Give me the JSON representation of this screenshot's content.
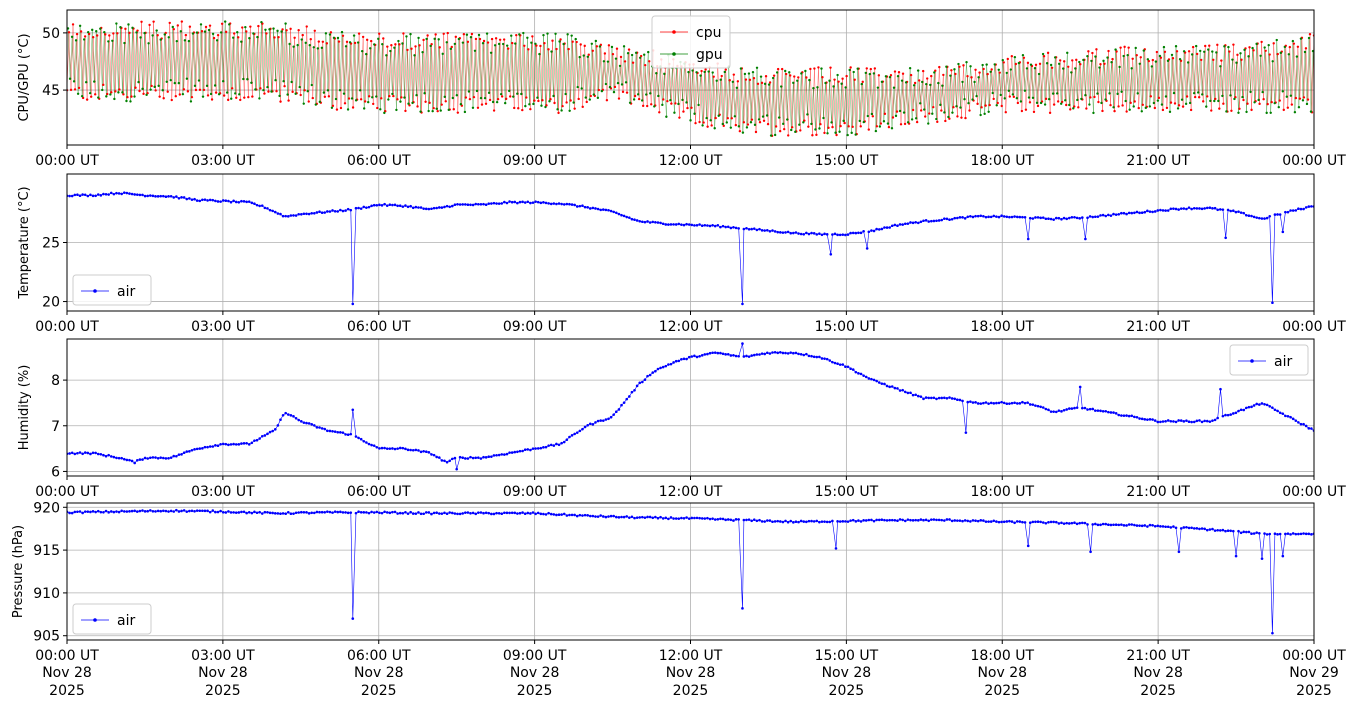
{
  "x_tick_labels": [
    "00:00 UT",
    "03:00 UT",
    "06:00 UT",
    "09:00 UT",
    "12:00 UT",
    "15:00 UT",
    "18:00 UT",
    "21:00 UT",
    "00:00 UT"
  ],
  "x_date_lines": [
    "Nov 28",
    "Nov 28",
    "Nov 28",
    "Nov 28",
    "Nov 28",
    "Nov 28",
    "Nov 28",
    "Nov 28",
    "Nov 29"
  ],
  "x_year_lines": [
    "2025",
    "2025",
    "2025",
    "2025",
    "2025",
    "2025",
    "2025",
    "2025",
    "2025"
  ],
  "colors": {
    "cpu": "#ff0000",
    "gpu": "#008000",
    "air": "#0000ff",
    "grid": "#b0b0b0"
  },
  "chart_data": [
    {
      "type": "line",
      "ylabel": "CPU/GPU (°C)",
      "xlim_hours": [
        0,
        24
      ],
      "ylim": [
        40.2,
        52.0
      ],
      "yticks": [
        45,
        50
      ],
      "grid": true,
      "legend_position": "top-center",
      "series": [
        {
          "name": "cpu",
          "color": "#ff0000",
          "min": 41,
          "max": 51.5,
          "band_hours": [
            0,
            4,
            5.5,
            8,
            9.5,
            10.5,
            12,
            13,
            15,
            16.5,
            18,
            21,
            22.5,
            24
          ],
          "band_low": [
            44,
            44,
            43,
            43,
            43,
            44,
            42,
            41,
            41,
            42,
            43,
            43,
            43,
            43
          ],
          "band_high": [
            51,
            51,
            50,
            50,
            50,
            49,
            48,
            47,
            47,
            47,
            48,
            49,
            49,
            50
          ]
        },
        {
          "name": "gpu",
          "color": "#008000",
          "min": 41,
          "max": 51.5,
          "band_hours": [
            0,
            4,
            5.5,
            8,
            9.5,
            10.5,
            12,
            13,
            15,
            16.5,
            18,
            21,
            22.5,
            24
          ],
          "band_low": [
            44,
            44,
            43,
            43,
            43,
            44,
            42,
            41,
            41,
            42,
            43,
            43,
            43,
            43
          ],
          "band_high": [
            51,
            51,
            50,
            50,
            50,
            49,
            48,
            47,
            47,
            47,
            48,
            49,
            49,
            50
          ]
        }
      ]
    },
    {
      "type": "line",
      "ylabel": "Temperature (°C)",
      "xlim_hours": [
        0,
        24
      ],
      "ylim": [
        19.2,
        30.8
      ],
      "yticks": [
        20,
        25
      ],
      "grid": true,
      "legend_position": "bottom-left",
      "series": [
        {
          "name": "air",
          "color": "#0000ff",
          "x_hours": [
            0,
            0.5,
            1,
            1.5,
            2,
            2.5,
            3,
            3.5,
            3.8,
            4.2,
            4.5,
            5,
            5.5,
            6,
            6.5,
            7,
            7.5,
            8,
            8.5,
            9,
            9.5,
            10,
            10.5,
            11,
            11.5,
            12,
            12.5,
            13,
            13.5,
            14,
            14.5,
            15,
            15.5,
            16,
            16.5,
            17,
            17.5,
            18,
            18.5,
            19,
            19.5,
            20,
            20.5,
            21,
            21.5,
            22,
            22.5,
            23,
            23.5,
            24
          ],
          "y": [
            29.0,
            29.0,
            29.2,
            29.0,
            28.9,
            28.6,
            28.5,
            28.4,
            28.0,
            27.2,
            27.4,
            27.6,
            27.8,
            28.2,
            28.1,
            27.8,
            28.2,
            28.2,
            28.4,
            28.4,
            28.3,
            28.0,
            27.6,
            26.8,
            26.6,
            26.5,
            26.4,
            26.2,
            26.0,
            25.8,
            25.7,
            25.7,
            26.0,
            26.5,
            26.8,
            27.0,
            27.2,
            27.2,
            27.1,
            27.0,
            27.1,
            27.3,
            27.5,
            27.7,
            27.9,
            27.9,
            27.6,
            27.0,
            27.6,
            28.1
          ],
          "spikes": [
            {
              "x": 5.5,
              "y": 19.8
            },
            {
              "x": 13.0,
              "y": 19.8
            },
            {
              "x": 23.2,
              "y": 19.9
            },
            {
              "x": 14.7,
              "y": 24.0
            },
            {
              "x": 15.4,
              "y": 24.5
            },
            {
              "x": 18.5,
              "y": 25.3
            },
            {
              "x": 19.6,
              "y": 25.3
            },
            {
              "x": 22.3,
              "y": 25.4
            },
            {
              "x": 23.4,
              "y": 25.9
            }
          ]
        }
      ]
    },
    {
      "type": "line",
      "ylabel": "Humidity (%)",
      "xlim_hours": [
        0,
        24
      ],
      "ylim": [
        5.9,
        8.9
      ],
      "yticks": [
        6,
        7,
        8
      ],
      "grid": true,
      "legend_position": "top-right",
      "series": [
        {
          "name": "air",
          "color": "#0000ff",
          "x_hours": [
            0,
            0.5,
            1,
            1.3,
            1.5,
            2,
            2.5,
            3,
            3.5,
            4,
            4.2,
            4.5,
            5,
            5.5,
            6,
            6.5,
            7,
            7.3,
            7.5,
            8,
            8.5,
            9,
            9.5,
            10,
            10.5,
            11,
            11.3,
            11.7,
            12,
            12.5,
            13,
            13.5,
            14,
            14.5,
            15,
            15.5,
            16,
            16.5,
            17,
            17.5,
            18,
            18.5,
            19,
            19.5,
            20,
            20.5,
            21,
            21.5,
            22,
            22.5,
            23,
            23.5,
            24
          ],
          "y": [
            6.4,
            6.4,
            6.3,
            6.2,
            6.3,
            6.3,
            6.5,
            6.6,
            6.6,
            6.9,
            7.3,
            7.1,
            6.9,
            6.8,
            6.5,
            6.5,
            6.4,
            6.2,
            6.3,
            6.3,
            6.4,
            6.5,
            6.6,
            7.0,
            7.2,
            7.9,
            8.2,
            8.4,
            8.5,
            8.6,
            8.5,
            8.6,
            8.6,
            8.5,
            8.3,
            8.0,
            7.8,
            7.6,
            7.6,
            7.5,
            7.5,
            7.5,
            7.3,
            7.4,
            7.3,
            7.2,
            7.1,
            7.1,
            7.1,
            7.3,
            7.5,
            7.2,
            6.9
          ],
          "spikes": [
            {
              "x": 5.5,
              "y": 7.35
            },
            {
              "x": 7.5,
              "y": 6.05
            },
            {
              "x": 13.0,
              "y": 8.8
            },
            {
              "x": 17.3,
              "y": 6.85
            },
            {
              "x": 19.5,
              "y": 7.85
            },
            {
              "x": 22.2,
              "y": 7.8
            }
          ]
        }
      ]
    },
    {
      "type": "line",
      "ylabel": "Pressure (hPa)",
      "xlim_hours": [
        0,
        24
      ],
      "ylim": [
        904.5,
        920.5
      ],
      "yticks": [
        905,
        910,
        915,
        920
      ],
      "grid": true,
      "legend_position": "bottom-left",
      "series": [
        {
          "name": "air",
          "color": "#0000ff",
          "x_hours": [
            0,
            1,
            2,
            3,
            4,
            5,
            6,
            7,
            8,
            9,
            10,
            11,
            12,
            13,
            14,
            15,
            16,
            17,
            18,
            19,
            20,
            21,
            22,
            23,
            24
          ],
          "y": [
            919.4,
            919.5,
            919.6,
            919.5,
            919.3,
            919.4,
            919.4,
            919.3,
            919.3,
            919.3,
            919.0,
            918.8,
            918.7,
            918.5,
            918.3,
            918.4,
            918.5,
            918.5,
            918.3,
            918.2,
            918.0,
            917.8,
            917.4,
            916.9,
            916.9
          ],
          "spikes": [
            {
              "x": 5.5,
              "y": 907.0
            },
            {
              "x": 13.0,
              "y": 908.2
            },
            {
              "x": 23.2,
              "y": 905.3
            },
            {
              "x": 14.8,
              "y": 915.2
            },
            {
              "x": 18.5,
              "y": 915.5
            },
            {
              "x": 19.7,
              "y": 914.8
            },
            {
              "x": 21.4,
              "y": 914.8
            },
            {
              "x": 23.0,
              "y": 914.0
            },
            {
              "x": 23.4,
              "y": 914.3
            },
            {
              "x": 22.5,
              "y": 914.3
            }
          ]
        }
      ]
    }
  ]
}
